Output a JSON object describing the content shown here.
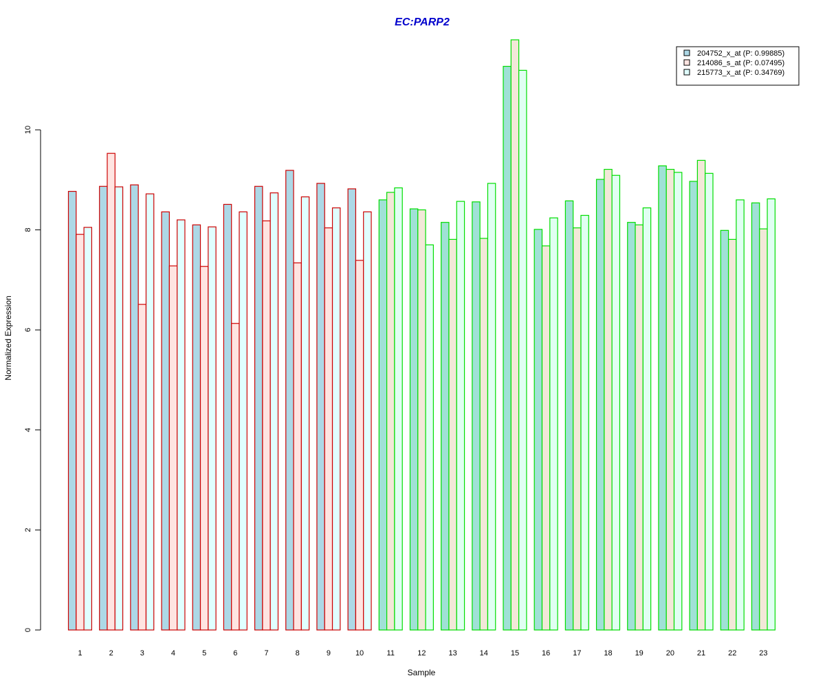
{
  "chart_data": {
    "type": "bar",
    "title": "EC:PARP2",
    "title_color": "#0000CC",
    "xlabel": "Sample",
    "ylabel": "Normalized Expression",
    "ylim": [
      0,
      11.9
    ],
    "yticks": [
      0,
      2,
      4,
      6,
      8,
      10
    ],
    "grid": false,
    "legend_position": "top-right",
    "categories": [
      "1",
      "2",
      "3",
      "4",
      "5",
      "6",
      "7",
      "8",
      "9",
      "10",
      "11",
      "12",
      "13",
      "14",
      "15",
      "16",
      "17",
      "18",
      "19",
      "20",
      "21",
      "22",
      "23"
    ],
    "group_border_colors": [
      "#CC0000",
      "#CC0000",
      "#CC0000",
      "#CC0000",
      "#CC0000",
      "#CC0000",
      "#CC0000",
      "#CC0000",
      "#CC0000",
      "#CC0000",
      "#00DD00",
      "#00DD00",
      "#00DD00",
      "#00DD00",
      "#00DD00",
      "#00DD00",
      "#00DD00",
      "#00DD00",
      "#00DD00",
      "#00DD00",
      "#00DD00",
      "#00DD00",
      "#00DD00"
    ],
    "series": [
      {
        "name": "204752_x_at (P: 0.99885)",
        "fill": "#ADD8E6",
        "fill_green_group": "#A0E1D6",
        "values": [
          8.77,
          8.87,
          8.9,
          8.36,
          8.1,
          8.51,
          8.87,
          9.19,
          8.93,
          8.82,
          8.6,
          8.42,
          8.15,
          8.56,
          11.27,
          8.01,
          8.58,
          9.01,
          8.15,
          9.28,
          8.97,
          7.99,
          8.54
        ]
      },
      {
        "name": "214086_s_at (P: 0.07495)",
        "fill": "#FFE4E1",
        "fill_green_group": "#F2E8D8",
        "values": [
          7.91,
          9.53,
          6.51,
          7.28,
          7.27,
          6.13,
          8.18,
          7.34,
          8.04,
          7.39,
          8.75,
          8.4,
          7.81,
          7.83,
          11.8,
          7.68,
          8.04,
          9.21,
          8.1,
          9.21,
          9.39,
          7.81,
          8.02
        ]
      },
      {
        "name": "215773_x_at (P: 0.34769)",
        "fill": "#E0FFFF",
        "fill_green_group": "#E0FFF2",
        "values": [
          8.05,
          8.86,
          8.72,
          8.2,
          8.06,
          8.36,
          8.74,
          8.66,
          8.44,
          8.36,
          8.84,
          7.7,
          8.57,
          8.93,
          11.19,
          8.24,
          8.29,
          9.09,
          8.44,
          9.15,
          9.13,
          8.6,
          8.62
        ]
      }
    ]
  }
}
